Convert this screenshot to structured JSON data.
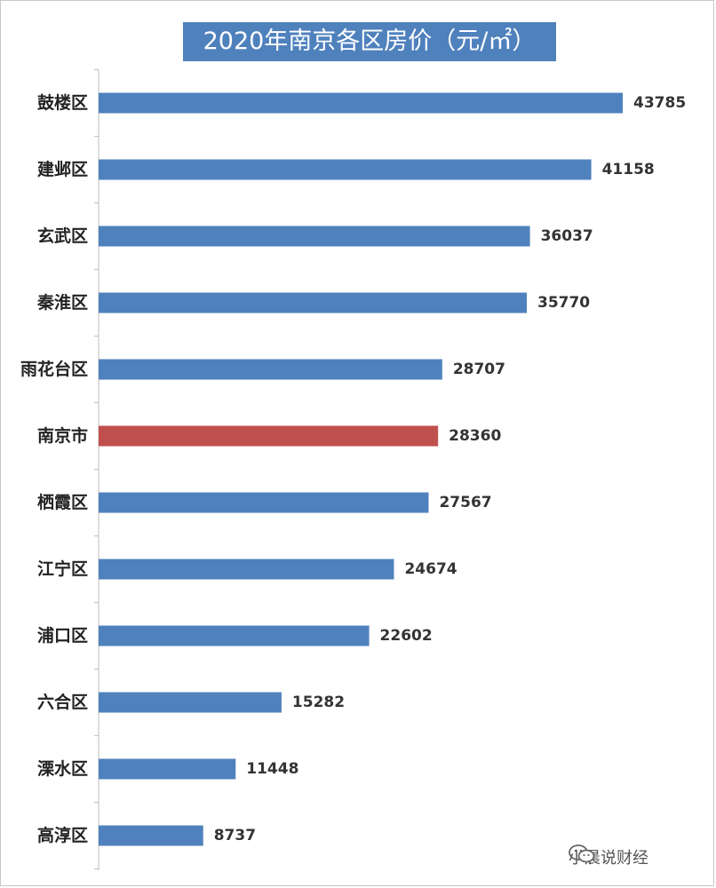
{
  "chart_data": {
    "type": "bar",
    "orientation": "horizontal",
    "title": "2020年南京各区房价（元/㎡）",
    "categories": [
      "鼓楼区",
      "建邺区",
      "玄武区",
      "秦淮区",
      "雨花台区",
      "南京市",
      "栖霞区",
      "江宁区",
      "浦口区",
      "六合区",
      "溧水区",
      "高淳区"
    ],
    "values": [
      43785,
      41158,
      36037,
      35770,
      28707,
      28360,
      27567,
      24674,
      22602,
      15282,
      11448,
      8737
    ],
    "value_labels": [
      "43785",
      "41158",
      "36037",
      "35770",
      "28707",
      "28360",
      "27567",
      "24674",
      "22602",
      "15282",
      "11448",
      "8737"
    ],
    "highlight_category": "南京市",
    "colors": {
      "bar": "#4f81bd",
      "highlight": "#c0504d",
      "title_bg": "#4f81bd",
      "title_text": "#ffffff",
      "axis": "#bfbfbf"
    },
    "xlim": [
      0,
      45000
    ],
    "grid": false,
    "legend": "none"
  },
  "watermark": {
    "icon": "wechat-icon",
    "text": "小晨说财经"
  }
}
